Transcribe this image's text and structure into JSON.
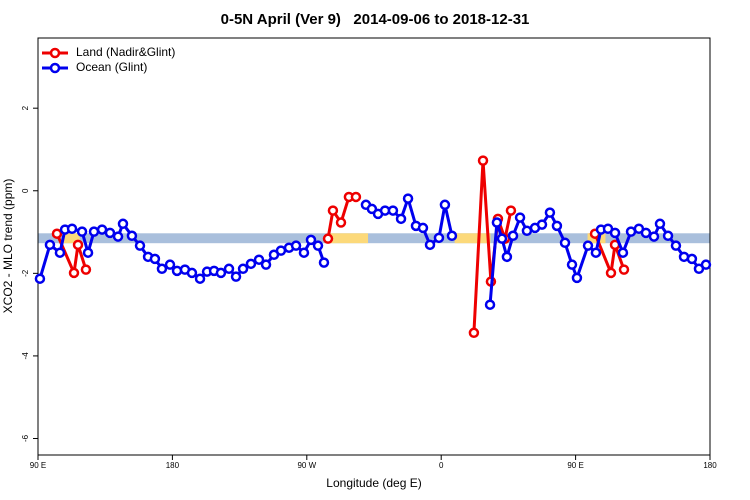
{
  "chart_data": {
    "type": "line",
    "title": "0-5N April (Ver 9)   2014-09-06 to 2018-12-31",
    "xlabel": "Longitude (deg E)",
    "ylabel": "XCO2 - MLO trend (ppm)",
    "xlim": [
      90,
      540
    ],
    "ylim": [
      -6.4,
      3.7
    ],
    "xticks": [
      {
        "value": 90,
        "label": "90 E"
      },
      {
        "value": 180,
        "label": "180"
      },
      {
        "value": 270,
        "label": "90 W"
      },
      {
        "value": 360,
        "label": "0"
      },
      {
        "value": 450,
        "label": "90 E"
      },
      {
        "value": 540,
        "label": "180"
      }
    ],
    "yticks": [
      -6,
      -4,
      -2,
      0,
      2
    ],
    "band": {
      "y": [
        -1.27,
        -1.03
      ],
      "color": "#a9bfdc",
      "highlight_color": "#fcd97a",
      "highlights": [
        [
          106,
          118
        ],
        [
          285.5,
          311
        ],
        [
          369,
          393
        ],
        [
          458,
          470
        ]
      ]
    },
    "legend": "top-left",
    "series": [
      {
        "name": "Land (Nadir&Glint)",
        "color": "#ee0000",
        "x": [
          102.7,
          114.1,
          116.8,
          122.1,
          null,
          284.2,
          287.5,
          292.9,
          298.2,
          302.9,
          null,
          381.9,
          388.0,
          393.3,
          398.0,
          402.7,
          406.7,
          null,
          463.0,
          473.7,
          476.4,
          482.4
        ],
        "values": [
          -1.04,
          -1.99,
          -1.31,
          -1.91,
          null,
          -1.16,
          -0.48,
          -0.77,
          -0.15,
          -0.15,
          null,
          -3.44,
          0.73,
          -2.2,
          -0.68,
          -1.16,
          -0.48,
          null,
          -1.04,
          -1.99,
          -1.31,
          -1.91
        ]
      },
      {
        "name": "Ocean (Glint)",
        "color": "#0000ee",
        "x": [
          91.3,
          98.0,
          104.7,
          108.1,
          112.8,
          119.5,
          123.5,
          127.5,
          132.9,
          138.2,
          143.6,
          146.9,
          152.9,
          158.3,
          163.7,
          168.3,
          173.0,
          178.4,
          183.1,
          188.4,
          193.1,
          198.5,
          203.2,
          207.9,
          212.5,
          217.9,
          222.6,
          227.3,
          232.6,
          238.0,
          242.7,
          248.0,
          252.7,
          258.1,
          262.8,
          268.1,
          272.8,
          277.5,
          281.5,
          null,
          309.6,
          313.6,
          317.7,
          322.4,
          327.7,
          333.1,
          337.8,
          343.1,
          347.8,
          352.5,
          358.5,
          362.5,
          367.2,
          null,
          392.7,
          397.3,
          400.7,
          404.0,
          408.1,
          412.8,
          417.4,
          422.8,
          427.5,
          432.8,
          437.5,
          442.9,
          447.6,
          450.9,
          458.3,
          463.6,
          467.0,
          471.7,
          476.4,
          481.7,
          487.1,
          492.4,
          497.1,
          502.5,
          506.5,
          511.9,
          517.2,
          522.6,
          527.9,
          532.6,
          537.3
        ],
        "values": [
          -2.13,
          -1.31,
          -1.5,
          -0.94,
          -0.92,
          -0.99,
          -1.5,
          -0.99,
          -0.94,
          -1.02,
          -1.11,
          -0.8,
          -1.09,
          -1.33,
          -1.6,
          -1.65,
          -1.89,
          -1.79,
          -1.94,
          -1.91,
          -1.99,
          -2.13,
          -1.96,
          -1.94,
          -1.99,
          -1.89,
          -2.08,
          -1.89,
          -1.77,
          -1.67,
          -1.79,
          -1.55,
          -1.45,
          -1.38,
          -1.33,
          -1.5,
          -1.19,
          -1.33,
          -1.74,
          null,
          -0.34,
          -0.44,
          -0.56,
          -0.48,
          -0.48,
          -0.68,
          -0.19,
          -0.85,
          -0.9,
          -1.31,
          -1.14,
          -0.34,
          -1.09,
          null,
          -2.76,
          -0.77,
          -1.16,
          -1.6,
          -1.09,
          -0.65,
          -0.97,
          -0.9,
          -0.82,
          -0.53,
          -0.85,
          -1.26,
          -1.79,
          -2.11,
          -1.33,
          -1.5,
          -0.94,
          -0.92,
          -1.02,
          -1.5,
          -0.99,
          -0.92,
          -1.02,
          -1.11,
          -0.8,
          -1.09,
          -1.33,
          -1.6,
          -1.65,
          -1.89,
          -1.79
        ]
      }
    ]
  }
}
